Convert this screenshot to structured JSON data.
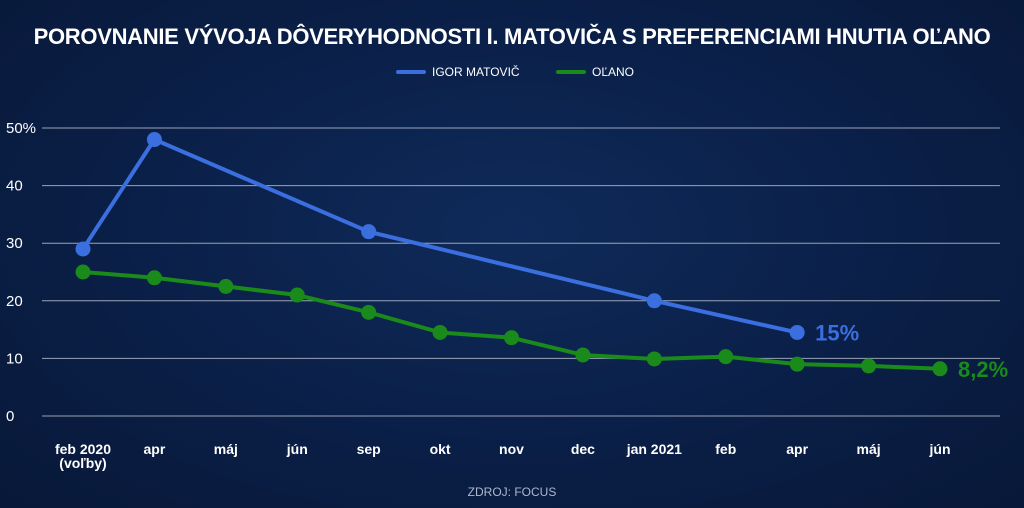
{
  "chart_data": {
    "type": "line",
    "title": "POROVNANIE VÝVOJA DÔVERYHODNOSTI I. MATOVIČA S PREFERENCIAMI HNUTIA OĽANO",
    "categories": [
      "feb 2020\n(voľby)",
      "apr",
      "máj",
      "jún",
      "sep",
      "okt",
      "nov",
      "dec",
      "jan 2021",
      "feb",
      "apr",
      "máj",
      "jún"
    ],
    "ylim": [
      0,
      50
    ],
    "yticks": [
      {
        "value": 0,
        "label": "0"
      },
      {
        "value": 10,
        "label": "10"
      },
      {
        "value": 20,
        "label": "20"
      },
      {
        "value": 30,
        "label": "30"
      },
      {
        "value": 40,
        "label": "40"
      },
      {
        "value": 50,
        "label": "50%"
      }
    ],
    "grid": true,
    "legend_position": "top-center",
    "series": [
      {
        "name": "IGOR MATOVIČ",
        "color": "#3b6fe0",
        "values": [
          29,
          48,
          null,
          null,
          32,
          null,
          null,
          null,
          20,
          null,
          14.5,
          null,
          null
        ],
        "end_label": "15%"
      },
      {
        "name": "OĽANO",
        "color": "#1a8a1a",
        "values": [
          25,
          24,
          22.5,
          21,
          18,
          14.5,
          13.6,
          10.6,
          9.9,
          10.3,
          9,
          8.7,
          8.2
        ],
        "end_label": "8,2%"
      }
    ],
    "source": "ZDROJ: FOCUS"
  }
}
